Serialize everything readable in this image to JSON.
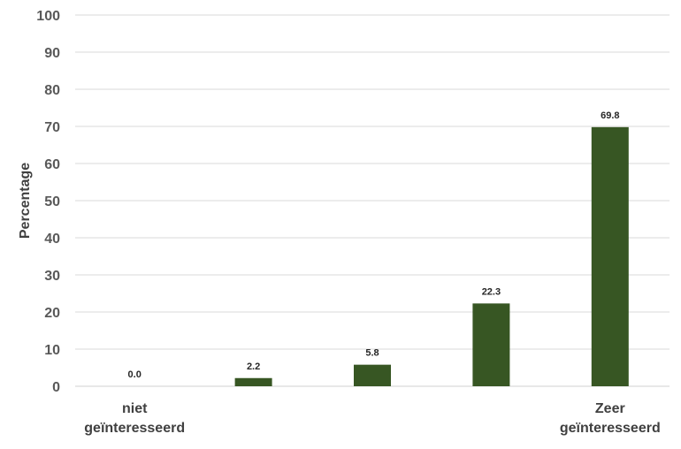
{
  "chart_data": {
    "type": "bar",
    "title": "",
    "xlabel": "",
    "ylabel": "Percentage",
    "ylim": [
      0,
      100
    ],
    "yticks": [
      0,
      10,
      20,
      30,
      40,
      50,
      60,
      70,
      80,
      90,
      100
    ],
    "grid": true,
    "legend": "none",
    "categories": [
      [
        "niet",
        "geïnteresseerd"
      ],
      [],
      [],
      [],
      [
        "Zeer",
        "geïnteresseerd"
      ]
    ],
    "values": [
      0.0,
      2.2,
      5.8,
      22.3,
      69.8
    ],
    "data_labels": [
      "0.0",
      "2.2",
      "5.8",
      "22.3",
      "69.8"
    ],
    "colors": {
      "bar": "#375623",
      "grid": "#d9d9d9"
    }
  }
}
